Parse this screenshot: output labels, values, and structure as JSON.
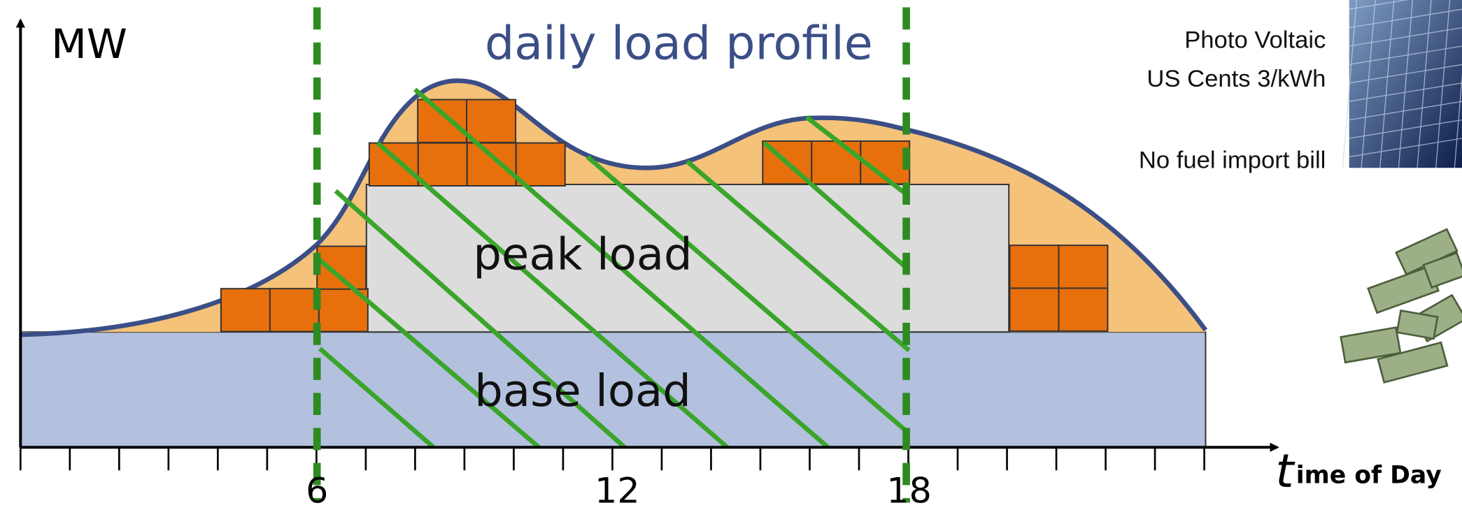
{
  "y_axis_label": "MW",
  "title": "daily load profile",
  "regions": {
    "peak": "peak load",
    "base": "base load"
  },
  "x_tick_labels": [
    "6",
    "12",
    "18"
  ],
  "x_axis_label": {
    "initial": "t",
    "rest": "ime of Day"
  },
  "side_notes": {
    "pv_name": "Photo Voltaic",
    "pv_cost": "US Cents 3/kWh",
    "fuel": "No fuel import bill"
  }
}
